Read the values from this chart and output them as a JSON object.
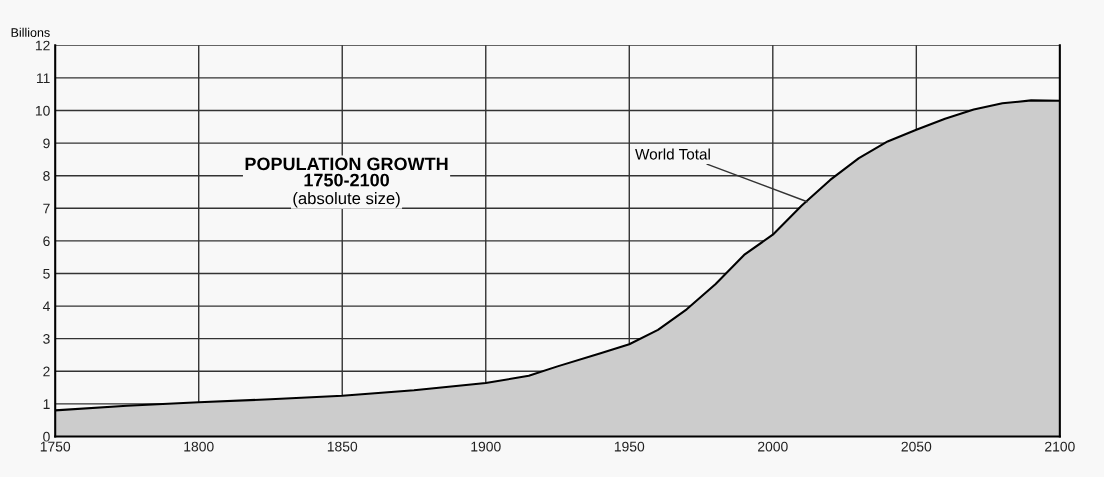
{
  "chart_data": {
    "type": "area",
    "title": "POPULATION GROWTH\n1750-2100",
    "subtitle": "(absolute size)",
    "ylabel": "Billions",
    "x": [
      1750,
      1775,
      1800,
      1825,
      1850,
      1875,
      1900,
      1915,
      1925,
      1940,
      1950,
      1960,
      1970,
      1980,
      1990,
      2000,
      2010,
      2020,
      2030,
      2040,
      2050,
      2060,
      2070,
      2080,
      2090,
      2100
    ],
    "series": [
      {
        "color": "#cccccc",
        "values": [
          0.8,
          0.94,
          1.05,
          1.14,
          1.25,
          1.42,
          1.64,
          1.86,
          2.15,
          2.55,
          2.83,
          3.27,
          3.9,
          4.67,
          5.57,
          6.19,
          7.08,
          7.87,
          8.54,
          9.05,
          9.41,
          9.75,
          10.03,
          10.22,
          10.31,
          10.3
        ]
      }
    ],
    "annotations": [
      {
        "text": "World Total",
        "x": 2012,
        "y": 7.2
      }
    ],
    "xlim": [
      1750,
      2100
    ],
    "ylim": [
      0,
      12
    ],
    "xticks": [
      1750,
      1800,
      1850,
      1900,
      1950,
      2000,
      2050,
      2100
    ],
    "yticks": [
      0,
      1,
      2,
      3,
      4,
      5,
      6,
      7,
      8,
      9,
      10,
      11,
      12
    ],
    "grid": true
  }
}
